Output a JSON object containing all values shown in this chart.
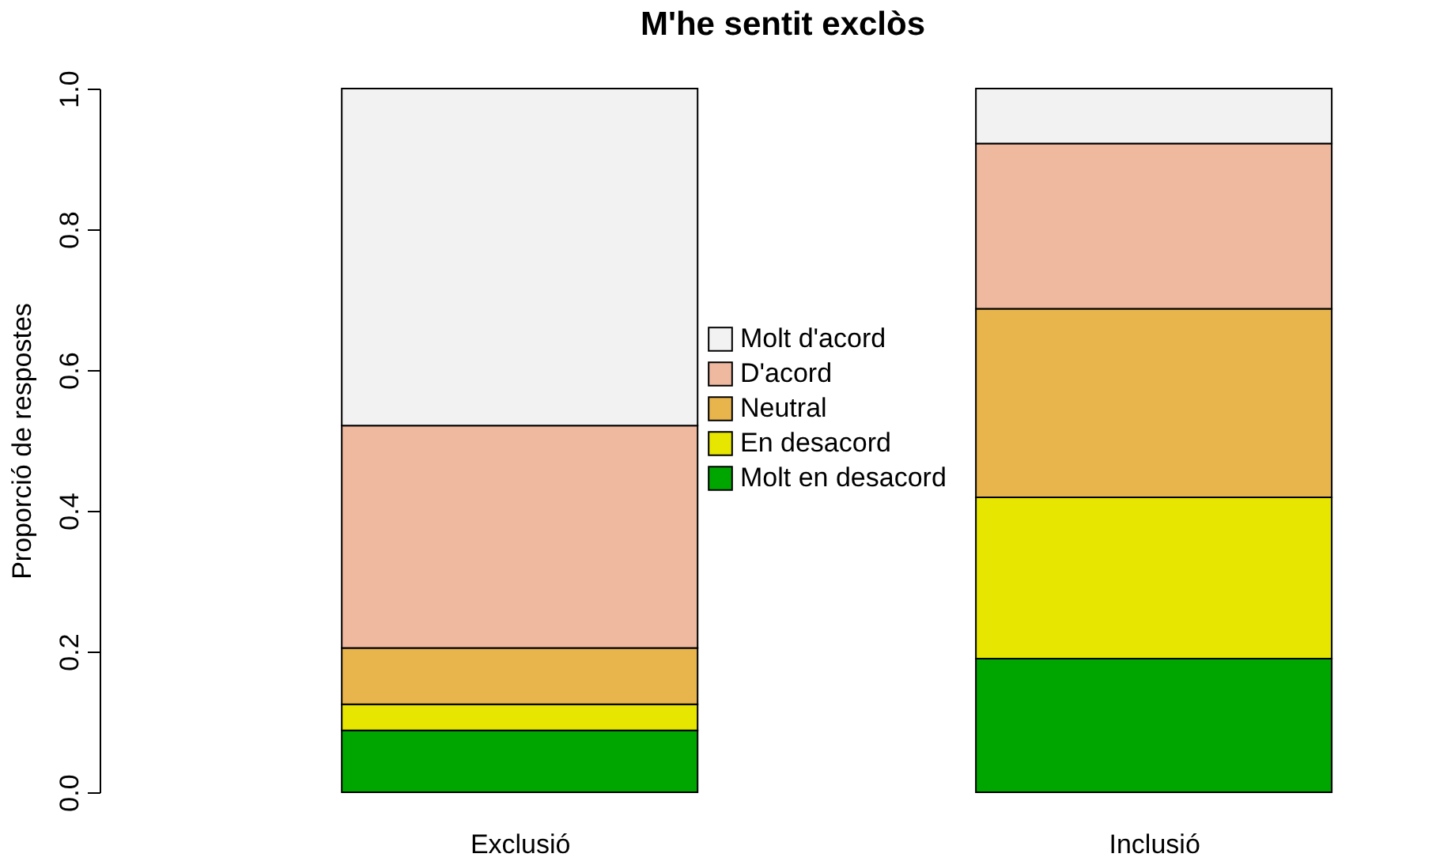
{
  "chart_data": {
    "type": "bar",
    "title": "M'he sentit exclòs",
    "ylabel": "Proporció de respostes",
    "categories": [
      "Exclusió",
      "Inclusió"
    ],
    "stacked": true,
    "legend": "center",
    "grid": false,
    "ylim": [
      0,
      1
    ],
    "yticks": [
      {
        "value": 0,
        "label": "0.0"
      },
      {
        "value": 0.2,
        "label": "0.2"
      },
      {
        "value": 0.4,
        "label": "0.4"
      },
      {
        "value": 0.6,
        "label": "0.6"
      },
      {
        "value": 0.8,
        "label": "0.8"
      },
      {
        "value": 1,
        "label": "1.0"
      }
    ],
    "series": [
      {
        "name": "Molt en desacord",
        "color": "#00a600",
        "values": [
          0.088,
          0.19
        ]
      },
      {
        "name": "En desacord",
        "color": "#e6e600",
        "values": [
          0.037,
          0.229
        ]
      },
      {
        "name": "Neutral",
        "color": "#e8b44c",
        "values": [
          0.08,
          0.268
        ]
      },
      {
        "name": "D'acord",
        "color": "#eeb99f",
        "values": [
          0.316,
          0.235
        ]
      },
      {
        "name": "Molt d'acord",
        "color": "#f2f2f2",
        "values": [
          0.479,
          0.078
        ]
      }
    ]
  }
}
